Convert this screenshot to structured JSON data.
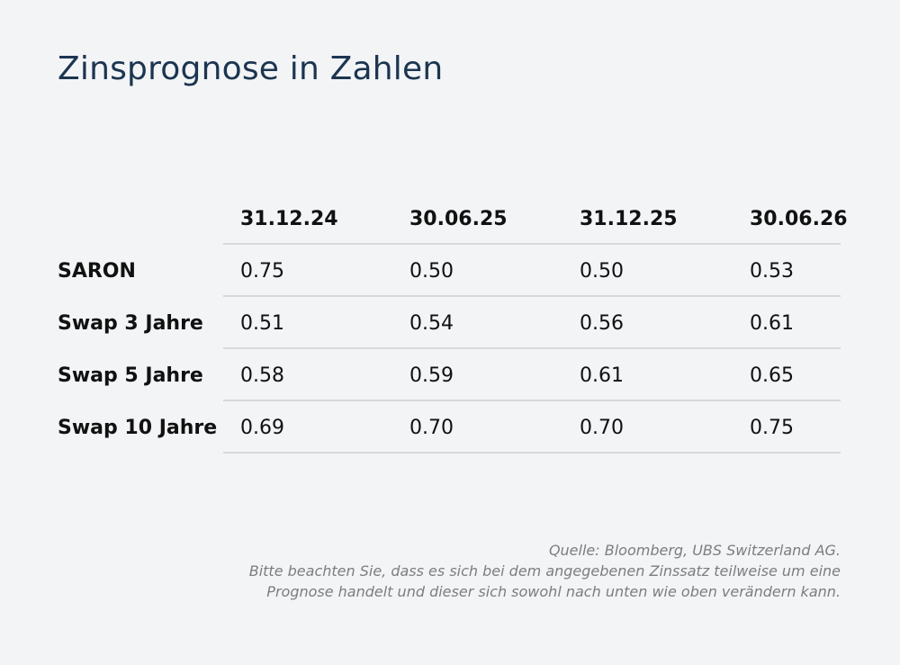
{
  "title": "Zinsprognose in Zahlen",
  "chart_data": {
    "type": "table",
    "title": "Zinsprognose in Zahlen",
    "columns": [
      "31.12.24",
      "30.06.25",
      "31.12.25",
      "30.06.26"
    ],
    "rows": [
      {
        "label": "SARON",
        "values": [
          "0.75",
          "0.50",
          "0.50",
          "0.53"
        ]
      },
      {
        "label": "Swap 3 Jahre",
        "values": [
          "0.51",
          "0.54",
          "0.56",
          "0.61"
        ]
      },
      {
        "label": "Swap 5 Jahre",
        "values": [
          "0.58",
          "0.59",
          "0.61",
          "0.65"
        ]
      },
      {
        "label": "Swap 10 Jahre",
        "values": [
          "0.69",
          "0.70",
          "0.70",
          "0.75"
        ]
      }
    ]
  },
  "footnote": {
    "source": "Quelle: Bloomberg, UBS Switzerland AG.",
    "line1": "Bitte beachten Sie, dass es sich bei dem angegebenen Zinssatz teilweise um eine",
    "line2": "Prognose handelt und dieser sich sowohl nach unten wie oben verändern kann."
  },
  "colors": {
    "background": "#f2f4f6",
    "title": "#1c3550",
    "text": "#111111",
    "rule": "#d6d8db",
    "footnote": "#7d7d7d"
  }
}
